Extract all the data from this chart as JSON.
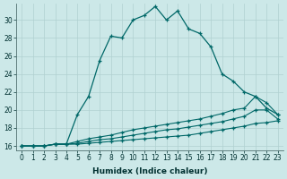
{
  "xlabel": "Humidex (Indice chaleur)",
  "background_color": "#cce8e8",
  "grid_color": "#b0d0d0",
  "line_color": "#006868",
  "xlim": [
    -0.5,
    23.5
  ],
  "ylim": [
    15.5,
    31.8
  ],
  "xticks": [
    0,
    1,
    2,
    3,
    4,
    5,
    6,
    7,
    8,
    9,
    10,
    11,
    12,
    13,
    14,
    15,
    16,
    17,
    18,
    19,
    20,
    21,
    22,
    23
  ],
  "yticks": [
    16,
    18,
    20,
    22,
    24,
    26,
    28,
    30
  ],
  "line1_x": [
    0,
    1,
    2,
    3,
    4,
    5,
    6,
    7,
    8,
    9,
    10,
    11,
    12,
    13,
    14,
    15,
    16,
    17,
    18,
    19,
    20,
    21,
    22,
    23
  ],
  "line1_y": [
    16.0,
    16.0,
    16.0,
    16.2,
    16.2,
    19.5,
    21.5,
    25.5,
    28.2,
    28.0,
    30.0,
    30.5,
    31.5,
    30.0,
    31.0,
    29.0,
    28.5,
    27.0,
    24.0,
    23.2,
    22.0,
    21.5,
    20.2,
    19.5
  ],
  "line2_x": [
    0,
    1,
    2,
    3,
    4,
    5,
    6,
    7,
    8,
    9,
    10,
    11,
    12,
    13,
    14,
    15,
    16,
    17,
    18,
    19,
    20,
    21,
    22,
    23
  ],
  "line2_y": [
    16.0,
    16.0,
    16.0,
    16.2,
    16.2,
    16.5,
    16.8,
    17.0,
    17.2,
    17.5,
    17.8,
    18.0,
    18.2,
    18.4,
    18.6,
    18.8,
    19.0,
    19.3,
    19.6,
    20.0,
    20.2,
    21.5,
    20.8,
    19.5
  ],
  "line3_x": [
    0,
    1,
    2,
    3,
    4,
    5,
    6,
    7,
    8,
    9,
    10,
    11,
    12,
    13,
    14,
    15,
    16,
    17,
    18,
    19,
    20,
    21,
    22,
    23
  ],
  "line3_y": [
    16.0,
    16.0,
    16.0,
    16.2,
    16.2,
    16.3,
    16.5,
    16.7,
    16.8,
    17.0,
    17.2,
    17.4,
    17.6,
    17.8,
    17.9,
    18.1,
    18.3,
    18.5,
    18.7,
    19.0,
    19.3,
    20.0,
    20.0,
    19.0
  ],
  "line4_x": [
    0,
    1,
    2,
    3,
    4,
    5,
    6,
    7,
    8,
    9,
    10,
    11,
    12,
    13,
    14,
    15,
    16,
    17,
    18,
    19,
    20,
    21,
    22,
    23
  ],
  "line4_y": [
    16.0,
    16.0,
    16.0,
    16.2,
    16.2,
    16.2,
    16.3,
    16.4,
    16.5,
    16.6,
    16.7,
    16.8,
    16.9,
    17.0,
    17.1,
    17.2,
    17.4,
    17.6,
    17.8,
    18.0,
    18.2,
    18.5,
    18.6,
    18.8
  ]
}
